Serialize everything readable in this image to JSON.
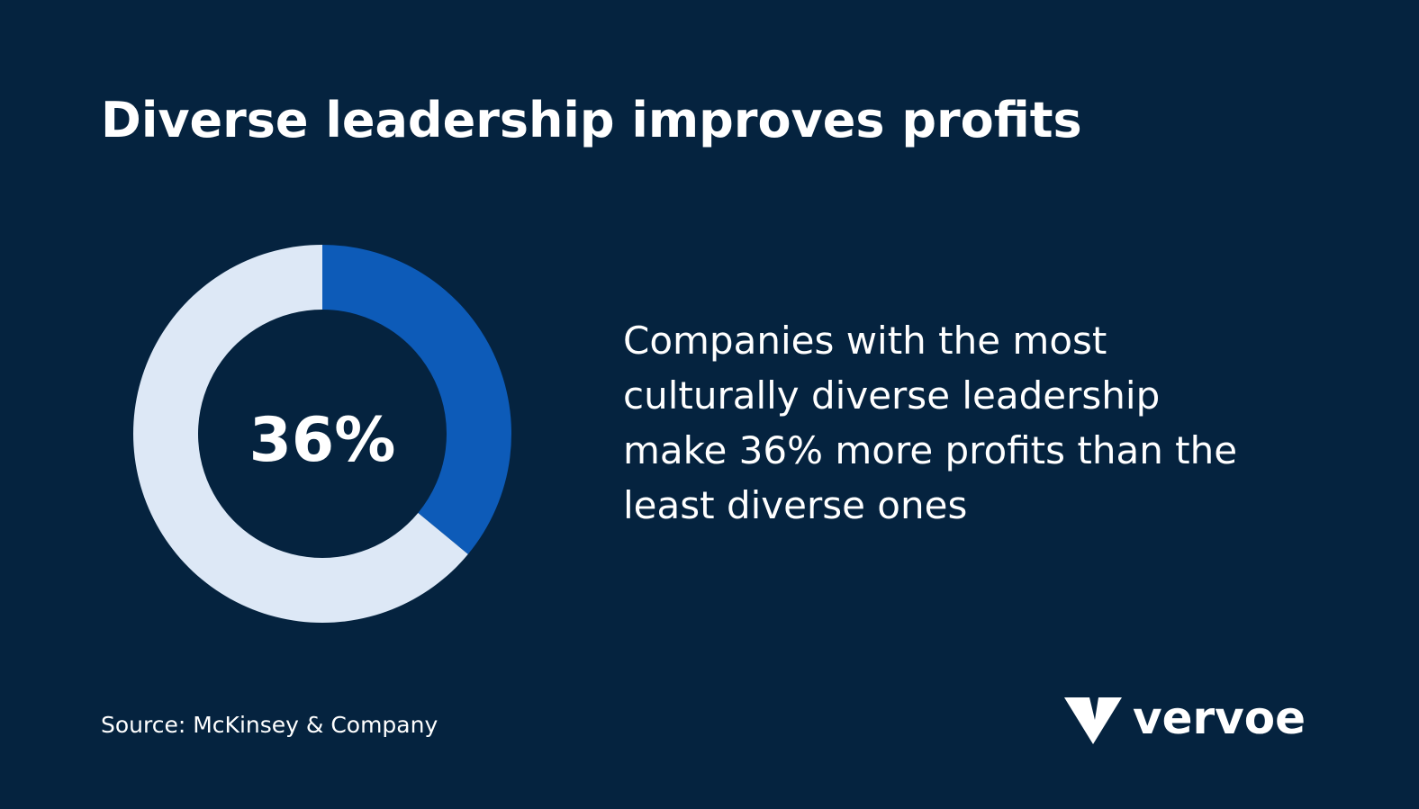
{
  "chart_data": {
    "type": "donut",
    "title": "Diverse leadership improves profits",
    "values": [
      36,
      64
    ],
    "colors": [
      "#0d5bb8",
      "#dde8f6"
    ],
    "center_label": "36%",
    "description": [
      "Companies with the most",
      "culturally diverse leadership",
      "make 36% more profits than the",
      "least diverse ones"
    ],
    "source": "Source: McKinsey & Company",
    "logo": "vervoe"
  }
}
